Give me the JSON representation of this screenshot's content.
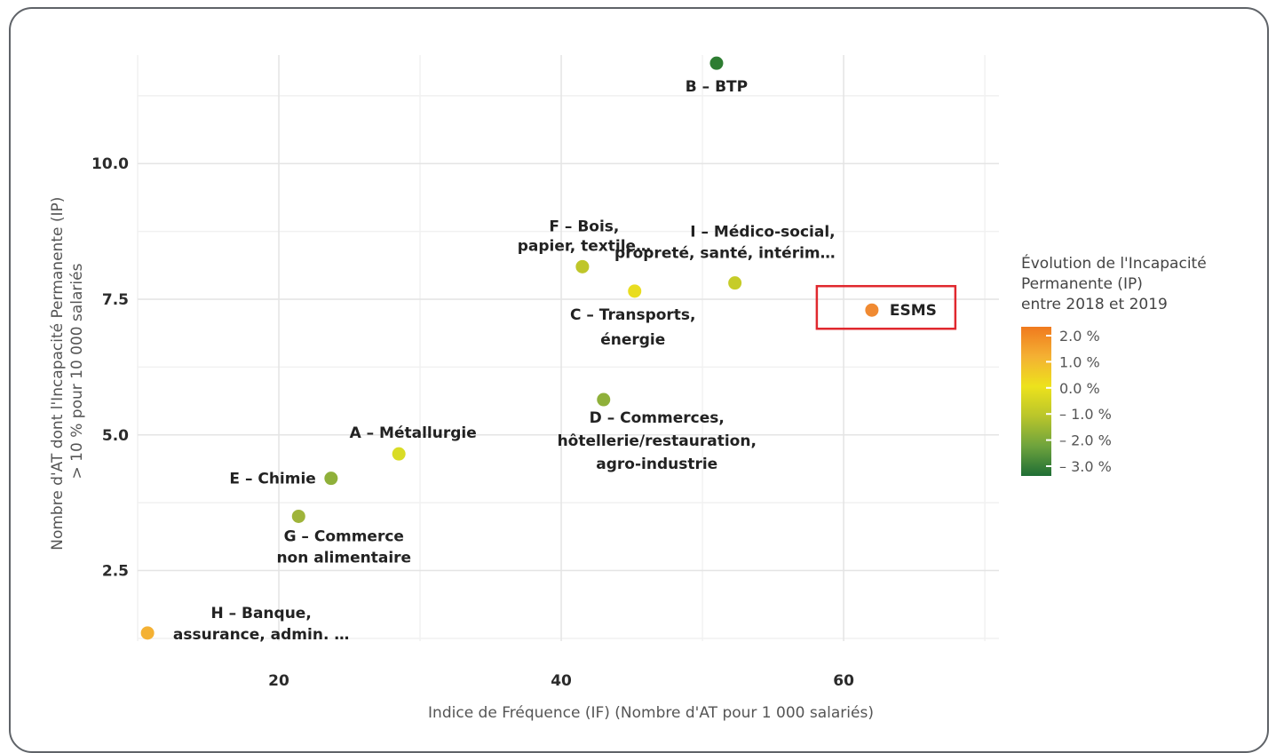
{
  "chart_data": {
    "type": "scatter",
    "xlabel": "Indice de Fréquence (IF) (Nombre d'AT pour 1 000 salariés)",
    "ylabel_lines": [
      "Nombre d'AT dont l'Incapacité Permanente (IP)",
      "> 10 % pour 10 000 salariés"
    ],
    "xlim": [
      10,
      71
    ],
    "ylim": [
      1.2,
      12.0
    ],
    "x_ticks": [
      20,
      40,
      60
    ],
    "x_tick_labels": [
      "20",
      "40",
      "60"
    ],
    "y_ticks": [
      2.5,
      5.0,
      7.5,
      10.0
    ],
    "y_tick_labels": [
      "2.5",
      "5.0",
      "7.5",
      "10.0"
    ],
    "grid": true,
    "highlight": "ESMS",
    "points": [
      {
        "id": "B",
        "label_lines": [
          "B – BTP"
        ],
        "x": 51.0,
        "y": 11.85,
        "ip_change": -3.0,
        "color": "#2e7d32"
      },
      {
        "id": "F",
        "label_lines": [
          "F – Bois,",
          "papier, textile…"
        ],
        "x": 41.5,
        "y": 8.1,
        "ip_change": -0.5,
        "color": "#bfc62a"
      },
      {
        "id": "C",
        "label_lines": [
          "C – Transports,",
          "énergie"
        ],
        "x": 45.2,
        "y": 7.65,
        "ip_change": 0.0,
        "color": "#e9dd20"
      },
      {
        "id": "I",
        "label_lines": [
          "I – Médico-social,",
          "propreté, santé, intérim…"
        ],
        "x": 52.3,
        "y": 7.8,
        "ip_change": -0.5,
        "color": "#c6cc28"
      },
      {
        "id": "ESMS",
        "label_lines": [
          "ESMS"
        ],
        "x": 62.0,
        "y": 7.3,
        "ip_change": 1.5,
        "color": "#f08a32"
      },
      {
        "id": "D",
        "label_lines": [
          "D – Commerces,",
          "hôtellerie/restauration,",
          "agro-industrie"
        ],
        "x": 43.0,
        "y": 5.65,
        "ip_change": -1.8,
        "color": "#8fb03a"
      },
      {
        "id": "A",
        "label_lines": [
          "A – Métallurgie"
        ],
        "x": 28.5,
        "y": 4.65,
        "ip_change": -0.3,
        "color": "#d9dc26"
      },
      {
        "id": "E",
        "label_lines": [
          "E – Chimie"
        ],
        "x": 23.7,
        "y": 4.2,
        "ip_change": -1.8,
        "color": "#8fb03a"
      },
      {
        "id": "G",
        "label_lines": [
          "G – Commerce",
          "non alimentaire"
        ],
        "x": 21.4,
        "y": 3.5,
        "ip_change": -1.5,
        "color": "#9fb43a"
      },
      {
        "id": "H",
        "label_lines": [
          "H – Banque,",
          "assurance, admin. …"
        ],
        "x": 10.7,
        "y": 1.35,
        "ip_change": 1.0,
        "color": "#f4b133"
      }
    ],
    "legend": {
      "title_lines": [
        "Évolution de l'Incapacité",
        "Permanente (IP)",
        "entre 2018 et 2019"
      ],
      "placement": "right",
      "ticks": [
        "2.0 %",
        "1.0 %",
        "0.0 %",
        "– 1.0 %",
        "– 2.0 %",
        "– 3.0 %"
      ],
      "gradient_colors": [
        "#f07a1e",
        "#f4b133",
        "#ede21c",
        "#b9c52b",
        "#6ea33d",
        "#1f6e35"
      ]
    }
  }
}
